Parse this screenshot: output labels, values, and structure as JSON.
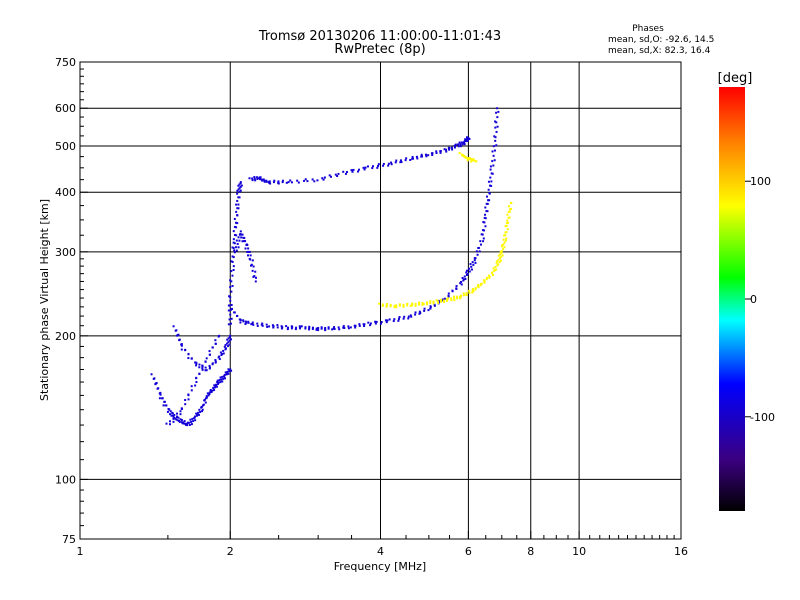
{
  "chart_data": {
    "type": "scatter",
    "title": "Tromsø 20130206 11:00:00-11:01:43",
    "subtitle": "RwPretec (8p)",
    "xlabel": "Frequency [MHz]",
    "ylabel": "Stationary phase Virtual Height [km]",
    "xscale": "log",
    "yscale": "log",
    "xlim": [
      1,
      16
    ],
    "ylim": [
      75,
      750
    ],
    "x_ticks": [
      1,
      2,
      4,
      6,
      8,
      10,
      16
    ],
    "y_ticks": [
      75,
      100,
      200,
      300,
      400,
      500,
      600,
      750
    ],
    "grid": true,
    "stats": {
      "heading": "Phases",
      "line1": "mean, sd,O: -92.6, 14.5",
      "line2": "mean, sd,X:  82.3, 16.4"
    },
    "colorbar": {
      "label": "[deg]",
      "range": [
        -180,
        180
      ],
      "ticks": [
        100,
        0,
        -100
      ]
    },
    "series": [
      {
        "mode": "O",
        "phase_mean": -92.6,
        "segments": [
          {
            "points": [
              [
                1.4,
                165
              ],
              [
                1.45,
                150
              ],
              [
                1.5,
                140
              ],
              [
                1.55,
                135
              ],
              [
                1.6,
                132
              ],
              [
                1.65,
                130
              ],
              [
                1.7,
                135
              ],
              [
                1.75,
                140
              ],
              [
                1.8,
                150
              ],
              [
                1.85,
                155
              ],
              [
                1.9,
                160
              ],
              [
                1.95,
                165
              ],
              [
                2.0,
                170
              ]
            ]
          },
          {
            "points": [
              [
                1.55,
                208
              ],
              [
                1.6,
                190
              ],
              [
                1.7,
                175
              ],
              [
                1.8,
                170
              ],
              [
                1.9,
                180
              ],
              [
                1.97,
                190
              ],
              [
                2.0,
                200
              ]
            ]
          },
          {
            "points": [
              [
                2.0,
                210
              ],
              [
                2.0,
                240
              ],
              [
                2.02,
                280
              ],
              [
                2.04,
                320
              ],
              [
                2.06,
                360
              ],
              [
                2.08,
                400
              ],
              [
                2.1,
                420
              ]
            ]
          },
          {
            "points": [
              [
                2.05,
                300
              ],
              [
                2.1,
                330
              ],
              [
                2.15,
                310
              ],
              [
                2.2,
                290
              ],
              [
                2.25,
                260
              ]
            ]
          },
          {
            "points": [
              [
                2.0,
                230
              ],
              [
                2.1,
                215
              ],
              [
                2.2,
                212
              ],
              [
                2.4,
                210
              ],
              [
                2.6,
                208
              ],
              [
                2.8,
                208
              ],
              [
                3.0,
                207
              ],
              [
                3.2,
                207
              ],
              [
                3.5,
                209
              ],
              [
                3.8,
                212
              ],
              [
                4.2,
                215
              ],
              [
                4.6,
                220
              ],
              [
                5.0,
                228
              ],
              [
                5.4,
                240
              ],
              [
                5.8,
                258
              ],
              [
                6.0,
                272
              ],
              [
                6.2,
                290
              ],
              [
                6.4,
                320
              ],
              [
                6.5,
                360
              ],
              [
                6.6,
                400
              ],
              [
                6.7,
                450
              ],
              [
                6.8,
                520
              ],
              [
                6.85,
                600
              ]
            ]
          },
          {
            "points": [
              [
                2.3,
                425
              ],
              [
                2.4,
                420
              ],
              [
                2.6,
                420
              ],
              [
                3.0,
                425
              ],
              [
                3.4,
                440
              ],
              [
                3.8,
                450
              ],
              [
                4.2,
                460
              ],
              [
                4.6,
                470
              ],
              [
                5.0,
                480
              ],
              [
                5.4,
                490
              ],
              [
                5.7,
                500
              ],
              [
                5.9,
                510
              ],
              [
                6.0,
                520
              ]
            ]
          },
          {
            "points": [
              [
                1.5,
                130
              ],
              [
                1.6,
                140
              ],
              [
                1.7,
                160
              ],
              [
                1.8,
                180
              ],
              [
                1.9,
                200
              ]
            ]
          },
          {
            "points": [
              [
                2.2,
                425
              ],
              [
                2.3,
                430
              ]
            ]
          }
        ]
      },
      {
        "mode": "X",
        "phase_mean": 82.3,
        "segments": [
          {
            "points": [
              [
                4.0,
                232
              ],
              [
                4.3,
                231
              ],
              [
                4.6,
                232
              ],
              [
                4.9,
                234
              ],
              [
                5.2,
                236
              ],
              [
                5.5,
                238
              ],
              [
                5.8,
                242
              ],
              [
                6.1,
                248
              ],
              [
                6.4,
                258
              ],
              [
                6.7,
                270
              ],
              [
                6.9,
                285
              ],
              [
                7.0,
                300
              ],
              [
                7.1,
                320
              ],
              [
                7.2,
                350
              ],
              [
                7.3,
                380
              ]
            ]
          },
          {
            "points": [
              [
                5.8,
                480
              ],
              [
                6.0,
                470
              ],
              [
                6.2,
                465
              ]
            ]
          }
        ]
      }
    ]
  }
}
